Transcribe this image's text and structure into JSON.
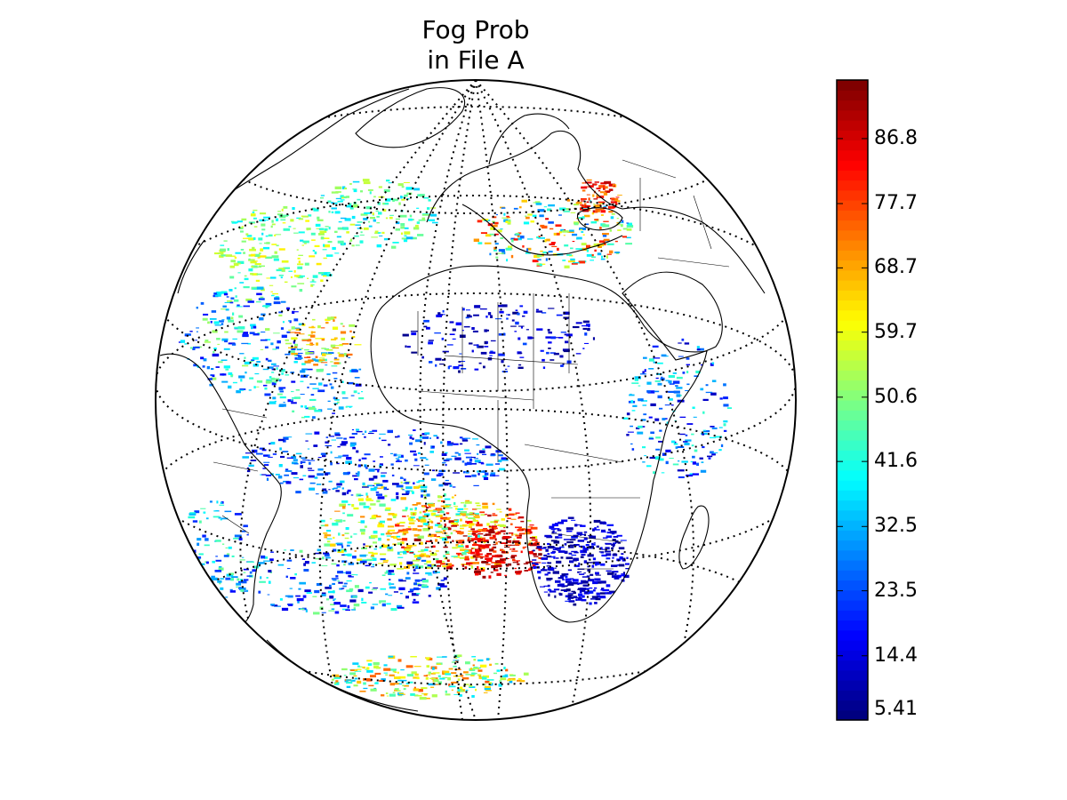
{
  "figure": {
    "title_line1": "Fog Prob",
    "title_line2": "in File A"
  },
  "map": {
    "projection": "orthographic",
    "graticule": "dotted",
    "field": "Fog Prob",
    "regions": {
      "europe_east": "high values over eastern Europe / Black Sea",
      "south_atlantic": "high values (up to ~90) in the South Atlantic west of southern Africa",
      "southern_africa": "low values (~5-15) over southern Africa"
    }
  },
  "colorbar": {
    "colormap": "jet",
    "min": 5.41,
    "max": 95.0,
    "tick_labels": [
      "5.41",
      "14.4",
      "23.5",
      "32.5",
      "41.6",
      "50.6",
      "59.7",
      "68.7",
      "77.7",
      "86.8"
    ],
    "tick_values": [
      5.41,
      14.4,
      23.5,
      32.5,
      41.6,
      50.6,
      59.7,
      68.7,
      77.7,
      86.8
    ]
  },
  "colors": {
    "coast": "#000000",
    "background": "#ffffff"
  }
}
